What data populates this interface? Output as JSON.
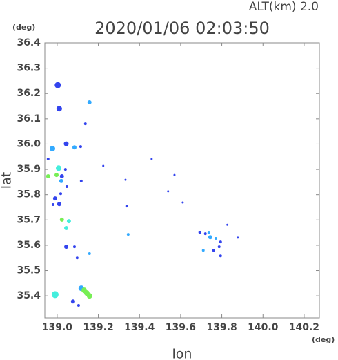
{
  "chart_data": {
    "type": "scatter",
    "title": "2020/01/06 02:03:50",
    "annotation": "ALT(km) 2.0",
    "xlabel": "lon",
    "ylabel": "lat",
    "xunit": "(deg)",
    "yunit": "(deg)",
    "xlim": [
      138.94,
      140.274
    ],
    "ylim": [
      35.313,
      36.4
    ],
    "xticks": [
      {
        "value": 139,
        "label": "139.0"
      },
      139.2,
      139.4,
      139.6,
      139.8,
      {
        "value": 140,
        "label": "140.0"
      },
      140.2
    ],
    "yticks": [
      35.4,
      35.5,
      35.6,
      35.7,
      35.8,
      35.9,
      {
        "value": 36,
        "label": "36.0"
      },
      36.1,
      36.2,
      36.3,
      36.4
    ],
    "x": [
      139.003,
      139.01,
      139.157,
      139.137,
      138.977,
      139.044,
      139.084,
      139.114,
      138.956,
      139.007,
      138.956,
      138.997,
      139.023,
      139.04,
      139.02,
      139.047,
      139.117,
      138.99,
      139.017,
      139.01,
      138.98,
      139.023,
      139.057,
      139.044,
      139.044,
      139.084,
      139.097,
      139.157,
      139.345,
      138.99,
      139.117,
      139.131,
      139.144,
      139.157,
      139.077,
      139.104,
      139.459,
      139.539,
      139.57,
      139.61,
      139.693,
      139.72,
      139.737,
      139.744,
      139.771,
      139.794,
      139.787,
      139.71,
      139.76,
      139.794,
      139.827,
      139.878,
      139.338,
      139.224,
      139.332
    ],
    "y": [
      36.233,
      36.14,
      36.165,
      36.08,
      35.982,
      36.001,
      35.987,
      35.99,
      35.941,
      35.905,
      35.873,
      35.878,
      35.873,
      35.9,
      35.854,
      35.832,
      35.854,
      35.785,
      35.804,
      35.763,
      35.761,
      35.701,
      35.695,
      35.668,
      35.594,
      35.594,
      35.55,
      35.567,
      35.643,
      35.405,
      35.43,
      35.422,
      35.411,
      35.4,
      35.378,
      35.362,
      35.941,
      35.813,
      35.878,
      35.769,
      35.651,
      35.646,
      35.649,
      35.632,
      35.627,
      35.613,
      35.594,
      35.58,
      35.58,
      35.558,
      35.681,
      35.63,
      35.755,
      35.914,
      35.859
    ],
    "sizes": [
      4.5,
      4,
      3,
      2,
      4,
      3.5,
      3,
      2,
      2,
      4,
      3,
      3,
      3,
      2,
      3,
      2,
      2,
      3,
      2,
      3,
      2,
      3,
      3,
      3,
      3,
      2,
      2,
      2,
      2,
      5,
      4,
      4,
      4,
      4,
      3,
      2,
      1.5,
      1.5,
      1.5,
      1.5,
      2,
      2,
      2,
      3,
      2,
      2,
      2,
      2,
      2,
      2,
      1.5,
      1.5,
      2,
      1.5,
      1.5
    ],
    "colors": [
      "#3344ee",
      "#3344ee",
      "#33aaff",
      "#3344ee",
      "#33aaff",
      "#3344ee",
      "#33aaff",
      "#3344ee",
      "#3344ee",
      "#44eedd",
      "#77ee55",
      "#77ee55",
      "#3344ee",
      "#3344ee",
      "#33aaff",
      "#3344ee",
      "#3344ee",
      "#3344ee",
      "#3344ee",
      "#3344ee",
      "#3344ee",
      "#77ee55",
      "#44eedd",
      "#44eedd",
      "#3344ee",
      "#3344ee",
      "#3344ee",
      "#33aaff",
      "#33aaff",
      "#44eedd",
      "#33aaff",
      "#77ee55",
      "#77ee55",
      "#77ee55",
      "#3344ee",
      "#3344ee",
      "#3344ee",
      "#3344ee",
      "#3344ee",
      "#3344ee",
      "#3344ee",
      "#3344ee",
      "#33aaff",
      "#33aaff",
      "#33aaff",
      "#3344ee",
      "#3344ee",
      "#33aaff",
      "#3344ee",
      "#3344ee",
      "#3344ee",
      "#3344ee",
      "#3344ee",
      "#3344ee",
      "#3344ee"
    ]
  }
}
